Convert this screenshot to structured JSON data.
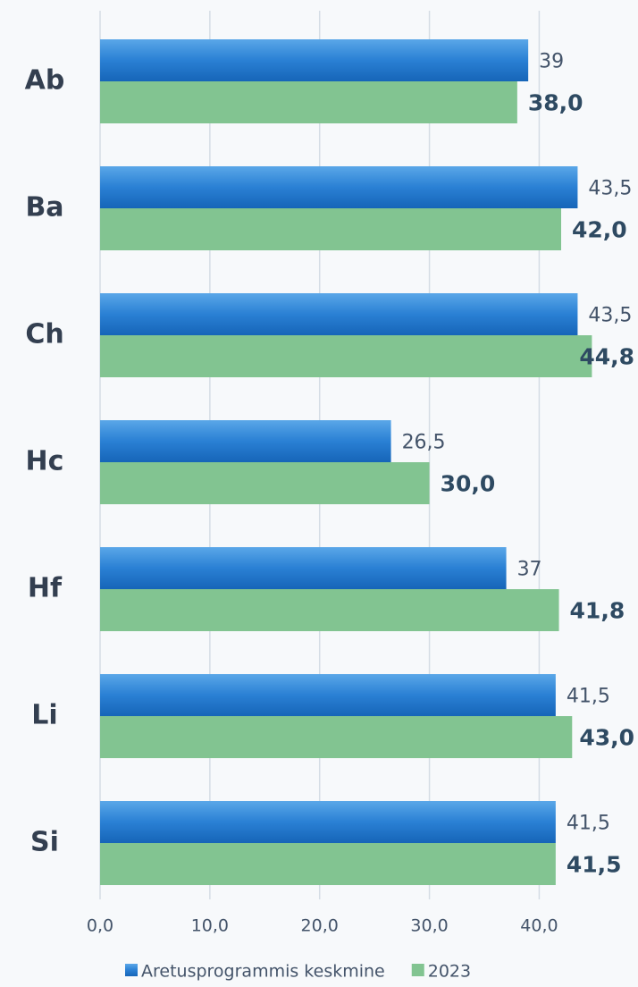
{
  "chart_data": {
    "type": "bar",
    "orientation": "horizontal",
    "categories": [
      "Ab",
      "Ba",
      "Ch",
      "Hc",
      "Hf",
      "Li",
      "Si"
    ],
    "series": [
      {
        "name": "Aretusprogrammis keskmine",
        "color": "#1f74c8",
        "values": [
          39,
          43.5,
          43.5,
          26.5,
          37,
          41.5,
          41.5
        ],
        "value_labels": [
          "39",
          "43,5",
          "43,5",
          "26,5",
          "37",
          "41,5",
          "41,5"
        ]
      },
      {
        "name": "2023",
        "color": "#82c491",
        "values": [
          38.0,
          42.0,
          44.8,
          30.0,
          41.8,
          43.0,
          41.5
        ],
        "value_labels": [
          "38,0",
          "42,0",
          "44,8",
          "30,0",
          "41,8",
          "43,0",
          "41,5"
        ]
      }
    ],
    "xlim": [
      0,
      49
    ],
    "xticks": [
      {
        "value": 0,
        "label": "0,0"
      },
      {
        "value": 10,
        "label": "10,0"
      },
      {
        "value": 20,
        "label": "20,0"
      },
      {
        "value": 30,
        "label": "30,0"
      },
      {
        "value": 40,
        "label": "40,0"
      }
    ],
    "grid": true,
    "legend": "bottom"
  }
}
